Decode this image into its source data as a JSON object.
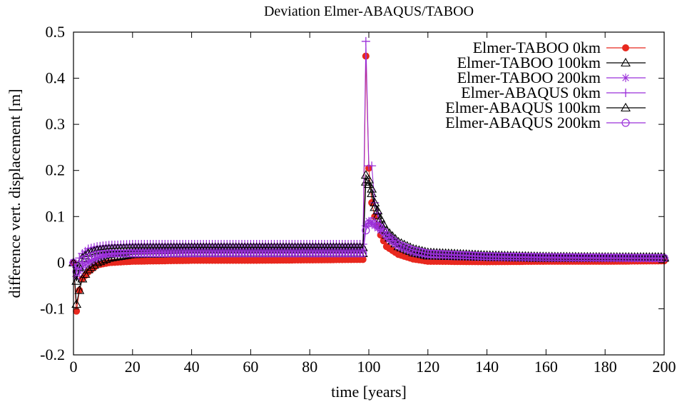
{
  "chart_data": {
    "type": "line",
    "title": "Deviation Elmer-ABAQUS/TABOO",
    "xlabel": "time [years]",
    "ylabel": "difference vert. displacement [m]",
    "xlim": [
      0,
      200
    ],
    "ylim": [
      -0.2,
      0.5
    ],
    "xticks": [
      0,
      20,
      40,
      60,
      80,
      100,
      120,
      140,
      160,
      180,
      200
    ],
    "yticks": [
      -0.2,
      -0.1,
      0,
      0.1,
      0.2,
      0.3,
      0.4,
      0.5
    ],
    "xtick_labels": [
      "0",
      "20",
      "40",
      "60",
      "80",
      "100",
      "120",
      "140",
      "160",
      "180",
      "200"
    ],
    "ytick_labels": [
      "-0.2",
      "-0.1",
      "0",
      "0.1",
      "0.2",
      "0.3",
      "0.4",
      "0.5"
    ],
    "grid": false,
    "legend_position": "top-right",
    "series": [
      {
        "name": "Elmer-TABOO 0km",
        "color": "#e8281e",
        "marker": "filled-circle",
        "points": [
          [
            0,
            0
          ],
          [
            1,
            -0.105
          ],
          [
            2,
            -0.06
          ],
          [
            3,
            -0.035
          ],
          [
            5,
            -0.02
          ],
          [
            8,
            -0.005
          ],
          [
            12,
            0
          ],
          [
            20,
            0.003
          ],
          [
            40,
            0.005
          ],
          [
            60,
            0.005
          ],
          [
            80,
            0.006
          ],
          [
            97,
            0.007
          ],
          [
            98,
            0.007
          ],
          [
            99,
            0.448
          ],
          [
            100,
            0.205
          ],
          [
            101,
            0.13
          ],
          [
            102,
            0.1
          ],
          [
            104,
            0.06
          ],
          [
            106,
            0.035
          ],
          [
            110,
            0.018
          ],
          [
            115,
            0.008
          ],
          [
            120,
            0.003
          ],
          [
            140,
            0.002
          ],
          [
            160,
            0.003
          ],
          [
            180,
            0.003
          ],
          [
            200,
            0.004
          ]
        ]
      },
      {
        "name": "Elmer-TABOO 100km",
        "color": "#000000",
        "marker": "open-triangle",
        "points": [
          [
            0,
            0
          ],
          [
            1,
            -0.09
          ],
          [
            2,
            -0.06
          ],
          [
            3,
            -0.035
          ],
          [
            5,
            -0.015
          ],
          [
            8,
            0
          ],
          [
            12,
            0.01
          ],
          [
            20,
            0.018
          ],
          [
            40,
            0.02
          ],
          [
            60,
            0.02
          ],
          [
            80,
            0.02
          ],
          [
            97,
            0.02
          ],
          [
            98,
            0.02
          ],
          [
            99,
            0.175
          ],
          [
            100,
            0.17
          ],
          [
            101,
            0.15
          ],
          [
            102,
            0.12
          ],
          [
            104,
            0.085
          ],
          [
            106,
            0.06
          ],
          [
            110,
            0.035
          ],
          [
            115,
            0.022
          ],
          [
            120,
            0.015
          ],
          [
            140,
            0.012
          ],
          [
            160,
            0.01
          ],
          [
            180,
            0.01
          ],
          [
            200,
            0.01
          ]
        ]
      },
      {
        "name": "Elmer-TABOO 200km",
        "color": "#9b30d9",
        "marker": "asterisk",
        "points": [
          [
            0,
            0
          ],
          [
            1,
            -0.03
          ],
          [
            2,
            -0.02
          ],
          [
            3,
            -0.01
          ],
          [
            5,
            0
          ],
          [
            8,
            0.01
          ],
          [
            12,
            0.02
          ],
          [
            20,
            0.025
          ],
          [
            40,
            0.028
          ],
          [
            60,
            0.028
          ],
          [
            80,
            0.028
          ],
          [
            97,
            0.028
          ],
          [
            98,
            0.028
          ],
          [
            99,
            0.08
          ],
          [
            100,
            0.09
          ],
          [
            101,
            0.085
          ],
          [
            102,
            0.08
          ],
          [
            104,
            0.07
          ],
          [
            106,
            0.055
          ],
          [
            110,
            0.035
          ],
          [
            115,
            0.022
          ],
          [
            120,
            0.016
          ],
          [
            140,
            0.012
          ],
          [
            160,
            0.01
          ],
          [
            180,
            0.01
          ],
          [
            200,
            0.01
          ]
        ]
      },
      {
        "name": "Elmer-ABAQUS 0km",
        "color": "#9b30d9",
        "marker": "plus",
        "points": [
          [
            0,
            0
          ],
          [
            1,
            -0.01
          ],
          [
            2,
            0.01
          ],
          [
            3,
            0.02
          ],
          [
            5,
            0.03
          ],
          [
            8,
            0.035
          ],
          [
            12,
            0.038
          ],
          [
            20,
            0.04
          ],
          [
            40,
            0.04
          ],
          [
            60,
            0.04
          ],
          [
            80,
            0.04
          ],
          [
            97,
            0.04
          ],
          [
            98,
            0.04
          ],
          [
            99,
            0.48
          ],
          [
            100,
            0.21
          ],
          [
            101,
            0.21
          ],
          [
            102,
            0.13
          ],
          [
            104,
            0.085
          ],
          [
            106,
            0.06
          ],
          [
            110,
            0.038
          ],
          [
            115,
            0.025
          ],
          [
            120,
            0.018
          ],
          [
            140,
            0.013
          ],
          [
            160,
            0.012
          ],
          [
            180,
            0.011
          ],
          [
            200,
            0.01
          ]
        ]
      },
      {
        "name": "Elmer-ABAQUS 100km",
        "color": "#000000",
        "marker": "open-triangle",
        "points": [
          [
            0,
            0
          ],
          [
            1,
            -0.04
          ],
          [
            2,
            -0.01
          ],
          [
            3,
            0.01
          ],
          [
            5,
            0.02
          ],
          [
            8,
            0.027
          ],
          [
            12,
            0.03
          ],
          [
            20,
            0.032
          ],
          [
            40,
            0.033
          ],
          [
            60,
            0.033
          ],
          [
            80,
            0.033
          ],
          [
            97,
            0.033
          ],
          [
            98,
            0.033
          ],
          [
            99,
            0.19
          ],
          [
            100,
            0.18
          ],
          [
            101,
            0.16
          ],
          [
            102,
            0.13
          ],
          [
            104,
            0.095
          ],
          [
            106,
            0.07
          ],
          [
            110,
            0.045
          ],
          [
            115,
            0.03
          ],
          [
            120,
            0.022
          ],
          [
            140,
            0.016
          ],
          [
            160,
            0.013
          ],
          [
            180,
            0.012
          ],
          [
            200,
            0.012
          ]
        ]
      },
      {
        "name": "Elmer-ABAQUS 200km",
        "color": "#9b30d9",
        "marker": "open-circle",
        "points": [
          [
            0,
            0
          ],
          [
            1,
            -0.02
          ],
          [
            2,
            -0.005
          ],
          [
            3,
            0.005
          ],
          [
            5,
            0.012
          ],
          [
            8,
            0.018
          ],
          [
            12,
            0.02
          ],
          [
            20,
            0.02
          ],
          [
            40,
            0.02
          ],
          [
            60,
            0.02
          ],
          [
            80,
            0.02
          ],
          [
            97,
            0.02
          ],
          [
            98,
            0.02
          ],
          [
            99,
            0.07
          ],
          [
            100,
            0.085
          ],
          [
            101,
            0.09
          ],
          [
            102,
            0.085
          ],
          [
            104,
            0.075
          ],
          [
            106,
            0.06
          ],
          [
            110,
            0.04
          ],
          [
            115,
            0.027
          ],
          [
            120,
            0.02
          ],
          [
            140,
            0.014
          ],
          [
            160,
            0.012
          ],
          [
            180,
            0.011
          ],
          [
            200,
            0.01
          ]
        ]
      }
    ]
  }
}
